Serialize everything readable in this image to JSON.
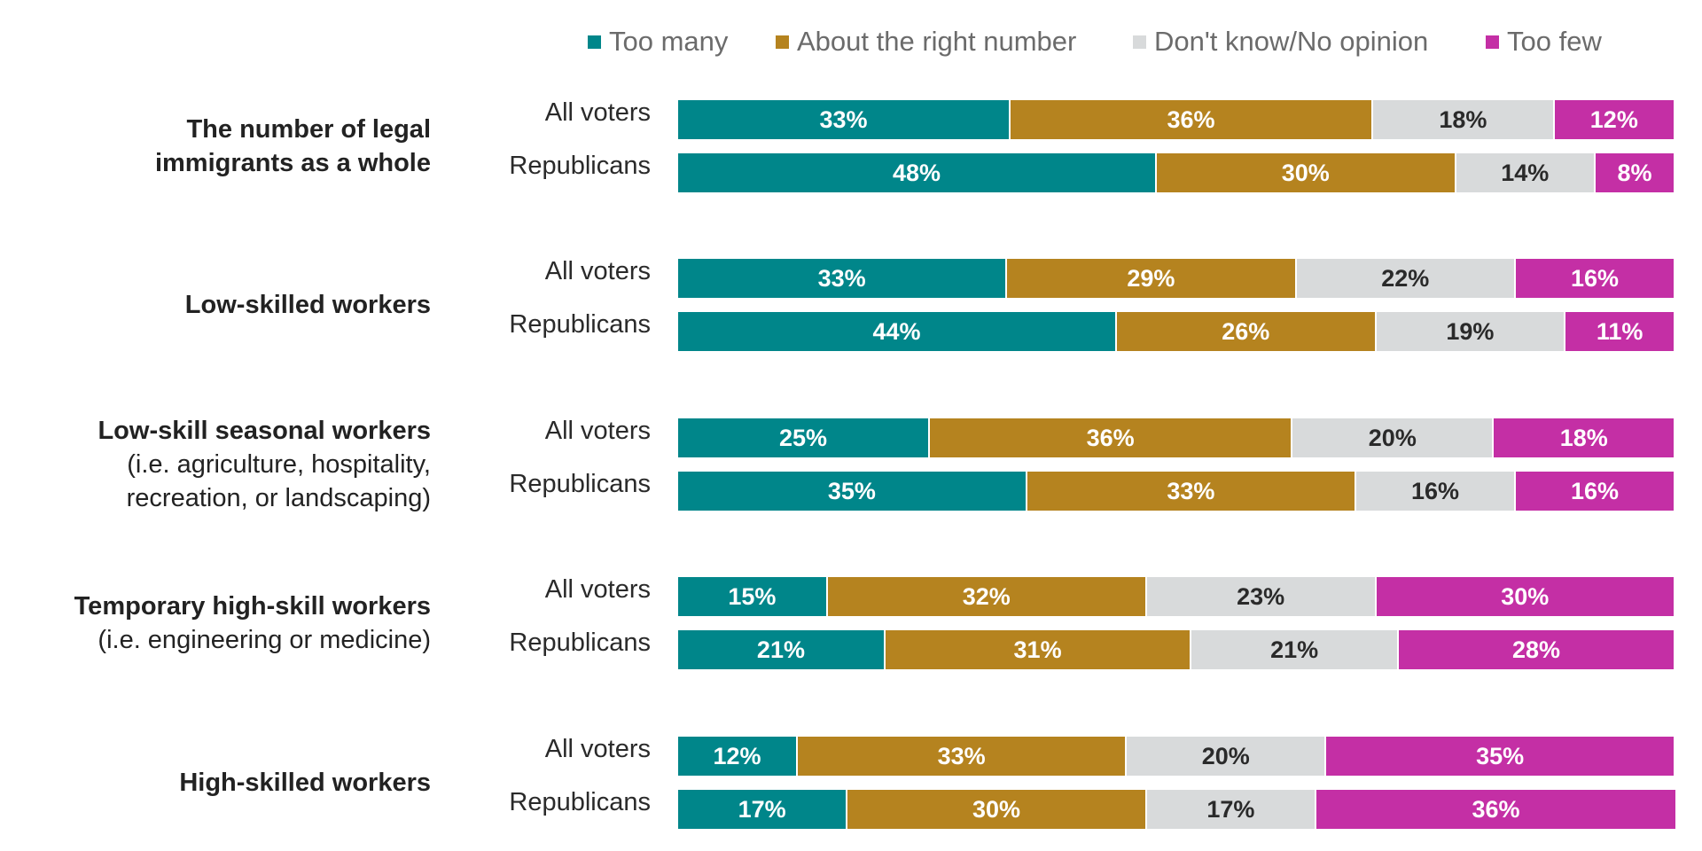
{
  "chart_data": {
    "type": "bar",
    "orientation": "horizontal",
    "stacked": true,
    "legend": {
      "placement": "top",
      "items": [
        {
          "key": "too_many",
          "label": "Too many",
          "color": "#00868A"
        },
        {
          "key": "about_right",
          "label": "About the right number",
          "color": "#B5831F"
        },
        {
          "key": "dont_know",
          "label": "Don't know/No opinion",
          "color": "#D8DADB"
        },
        {
          "key": "too_few",
          "label": "Too few",
          "color": "#C42FA5"
        }
      ]
    },
    "value_labels": {
      "too_many": "#ffffff",
      "about_right": "#ffffff",
      "dont_know": "#2a2a2a",
      "too_few": "#ffffff"
    },
    "xlim": [
      0,
      100
    ],
    "groups": [
      {
        "title": "The number of legal immigrants as a whole",
        "title_lines": [
          "The number of legal",
          "immigrants as a whole"
        ],
        "subtitle_lines": [],
        "rows": [
          {
            "label": "All voters",
            "values": [
              33,
              36,
              18,
              12
            ],
            "labels": [
              "33%",
              "36%",
              "18%",
              "12%"
            ]
          },
          {
            "label": "Republicans",
            "values": [
              48,
              30,
              14,
              8
            ],
            "labels": [
              "48%",
              "30%",
              "14%",
              "8%"
            ]
          }
        ]
      },
      {
        "title": "Low-skilled workers",
        "title_lines": [
          "Low-skilled workers"
        ],
        "subtitle_lines": [],
        "rows": [
          {
            "label": "All voters",
            "values": [
              33,
              29,
              22,
              16
            ],
            "labels": [
              "33%",
              "29%",
              "22%",
              "16%"
            ]
          },
          {
            "label": "Republicans",
            "values": [
              44,
              26,
              19,
              11
            ],
            "labels": [
              "44%",
              "26%",
              "19%",
              "11%"
            ]
          }
        ]
      },
      {
        "title": "Low-skill seasonal workers",
        "title_lines": [
          "Low-skill seasonal workers"
        ],
        "subtitle_lines": [
          "(i.e. agriculture, hospitality,",
          "recreation, or landscaping)"
        ],
        "rows": [
          {
            "label": "All voters",
            "values": [
              25,
              36,
              20,
              18
            ],
            "labels": [
              "25%",
              "36%",
              "20%",
              "18%"
            ]
          },
          {
            "label": "Republicans",
            "values": [
              35,
              33,
              16,
              16
            ],
            "labels": [
              "35%",
              "33%",
              "16%",
              "16%"
            ]
          }
        ]
      },
      {
        "title": "Temporary high-skill workers",
        "title_lines": [
          "Temporary high-skill workers"
        ],
        "subtitle_lines": [
          "(i.e. engineering or medicine)"
        ],
        "rows": [
          {
            "label": "All voters",
            "values": [
              15,
              32,
              23,
              30
            ],
            "labels": [
              "15%",
              "32%",
              "23%",
              "30%"
            ]
          },
          {
            "label": "Republicans",
            "values": [
              21,
              31,
              21,
              28
            ],
            "labels": [
              "21%",
              "31%",
              "21%",
              "28%"
            ]
          }
        ]
      },
      {
        "title": "High-skilled workers",
        "title_lines": [
          "High-skilled workers"
        ],
        "subtitle_lines": [],
        "rows": [
          {
            "label": "All voters",
            "values": [
              12,
              33,
              20,
              35
            ],
            "labels": [
              "12%",
              "33%",
              "20%",
              "35%"
            ]
          },
          {
            "label": "Republicans",
            "values": [
              17,
              30,
              17,
              36
            ],
            "labels": [
              "17%",
              "30%",
              "17%",
              "36%"
            ]
          }
        ]
      }
    ]
  }
}
